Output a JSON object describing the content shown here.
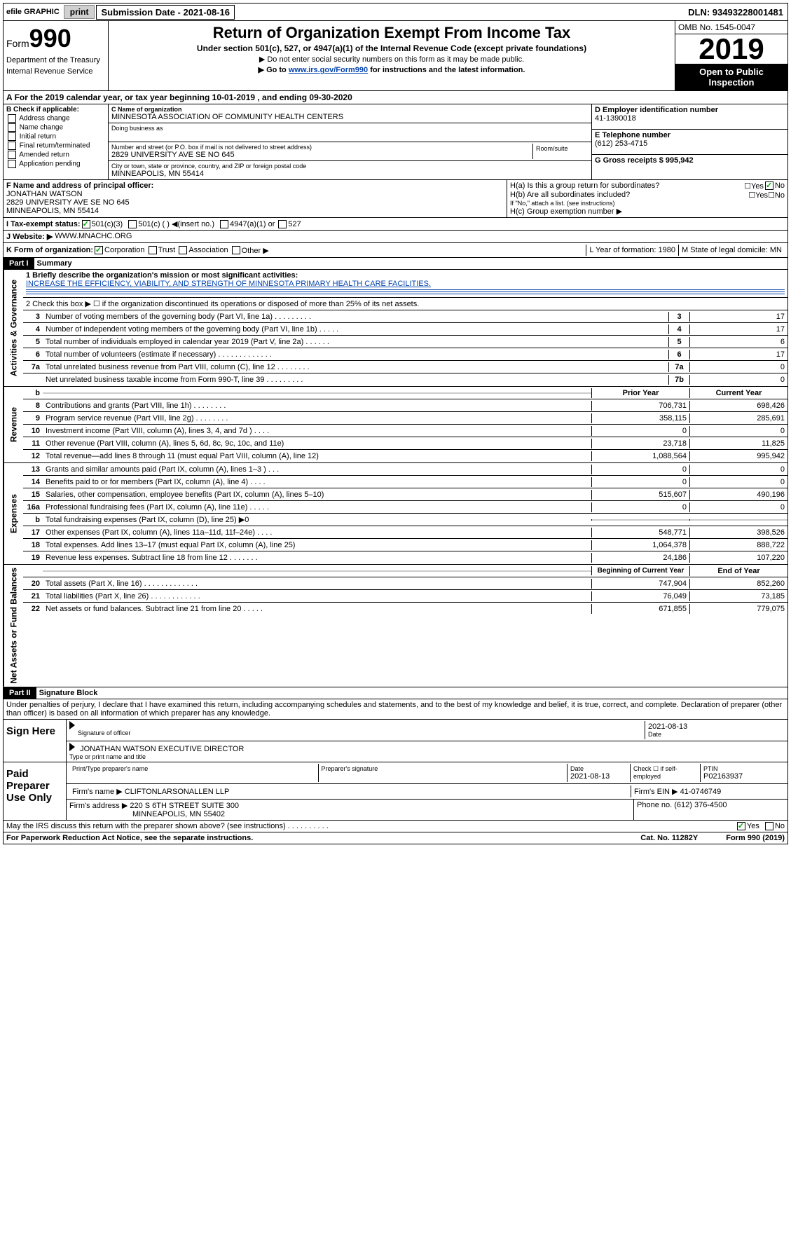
{
  "topbar": {
    "efile": "efile GRAPHIC",
    "print": "print",
    "submission_label": "Submission Date - 2021-08-16",
    "dln": "DLN: 93493228001481"
  },
  "header": {
    "form_label": "Form",
    "form_num": "990",
    "dept": "Department of the Treasury",
    "irs": "Internal Revenue Service",
    "title": "Return of Organization Exempt From Income Tax",
    "subtitle": "Under section 501(c), 527, or 4947(a)(1) of the Internal Revenue Code (except private foundations)",
    "instr1": "▶ Do not enter social security numbers on this form as it may be made public.",
    "instr2_pre": "▶ Go to ",
    "instr2_link": "www.irs.gov/Form990",
    "instr2_post": " for instructions and the latest information.",
    "omb": "OMB No. 1545-0047",
    "year": "2019",
    "open": "Open to Public Inspection"
  },
  "section_a": "For the 2019 calendar year, or tax year beginning 10-01-2019    , and ending 09-30-2020",
  "box_b": {
    "label": "B Check if applicable:",
    "items": [
      "Address change",
      "Name change",
      "Initial return",
      "Final return/terminated",
      "Amended return",
      "Application pending"
    ]
  },
  "box_c": {
    "name_label": "C Name of organization",
    "name": "MINNESOTA ASSOCIATION OF COMMUNITY HEALTH CENTERS",
    "dba_label": "Doing business as",
    "addr_label": "Number and street (or P.O. box if mail is not delivered to street address)",
    "room_label": "Room/suite",
    "addr": "2829 UNIVERSITY AVE SE NO 645",
    "city_label": "City or town, state or province, country, and ZIP or foreign postal code",
    "city": "MINNEAPOLIS, MN  55414"
  },
  "box_d": {
    "label": "D Employer identification number",
    "value": "41-1390018"
  },
  "box_e": {
    "label": "E Telephone number",
    "value": "(612) 253-4715"
  },
  "box_g": {
    "label": "G Gross receipts $ 995,942"
  },
  "box_f": {
    "label": "F  Name and address of principal officer:",
    "name": "JONATHAN WATSON",
    "addr1": "2829 UNIVERSITY AVE SE NO 645",
    "addr2": "MINNEAPOLIS, MN  55414"
  },
  "box_h": {
    "ha": "H(a)  Is this a group return for subordinates?",
    "hb": "H(b)  Are all subordinates included?",
    "hb_note": "If \"No,\" attach a list. (see instructions)",
    "hc": "H(c)  Group exemption number ▶"
  },
  "row_i": {
    "label": "I     Tax-exempt status:",
    "opt1": "501(c)(3)",
    "opt2": "501(c) (   ) ◀(insert no.)",
    "opt3": "4947(a)(1) or",
    "opt4": "527"
  },
  "row_j": {
    "label": "J    Website: ▶",
    "value": "WWW.MNACHC.ORG"
  },
  "row_k": {
    "label": "K Form of organization:",
    "opts": [
      "Corporation",
      "Trust",
      "Association",
      "Other ▶"
    ],
    "l_label": "L Year of formation: 1980",
    "m_label": "M State of legal domicile: MN"
  },
  "part1": {
    "header": "Part I",
    "title": "Summary"
  },
  "summary": {
    "line1_label": "1  Briefly describe the organization's mission or most significant activities:",
    "line1_text": "INCREASE THE EFFICIENCY, VIABILITY, AND STRENGTH OF MINNESOTA PRIMARY HEALTH CARE FACILITIES.",
    "line2": "2   Check this box ▶ ☐  if the organization discontinued its operations or disposed of more than 25% of its net assets.",
    "lines_gov": [
      {
        "n": "3",
        "t": "Number of voting members of the governing body (Part VI, line 1a)  .  .  .  .  .  .  .  .  .",
        "b": "3",
        "v": "17"
      },
      {
        "n": "4",
        "t": "Number of independent voting members of the governing body (Part VI, line 1b)  .  .  .  .  .",
        "b": "4",
        "v": "17"
      },
      {
        "n": "5",
        "t": "Total number of individuals employed in calendar year 2019 (Part V, line 2a)  .  .  .  .  .  .",
        "b": "5",
        "v": "6"
      },
      {
        "n": "6",
        "t": "Total number of volunteers (estimate if necessary)  .  .  .  .  .  .  .  .  .  .  .  .  .",
        "b": "6",
        "v": "17"
      },
      {
        "n": "7a",
        "t": "Total unrelated business revenue from Part VIII, column (C), line 12  .  .  .  .  .  .  .  .",
        "b": "7a",
        "v": "0"
      },
      {
        "n": "",
        "t": "Net unrelated business taxable income from Form 990-T, line 39  .  .  .  .  .  .  .  .  .",
        "b": "7b",
        "v": "0"
      }
    ],
    "col_prior": "Prior Year",
    "col_current": "Current Year",
    "lines_rev": [
      {
        "n": "8",
        "t": "Contributions and grants (Part VIII, line 1h)  .  .  .  .  .  .  .  .",
        "p": "706,731",
        "c": "698,426"
      },
      {
        "n": "9",
        "t": "Program service revenue (Part VIII, line 2g)  .  .  .  .  .  .  .  .",
        "p": "358,115",
        "c": "285,691"
      },
      {
        "n": "10",
        "t": "Investment income (Part VIII, column (A), lines 3, 4, and 7d )  .  .  .  .",
        "p": "0",
        "c": "0"
      },
      {
        "n": "11",
        "t": "Other revenue (Part VIII, column (A), lines 5, 6d, 8c, 9c, 10c, and 11e)",
        "p": "23,718",
        "c": "11,825"
      },
      {
        "n": "12",
        "t": "Total revenue—add lines 8 through 11 (must equal Part VIII, column (A), line 12)",
        "p": "1,088,564",
        "c": "995,942"
      }
    ],
    "lines_exp": [
      {
        "n": "13",
        "t": "Grants and similar amounts paid (Part IX, column (A), lines 1–3 )  .  .  .",
        "p": "0",
        "c": "0"
      },
      {
        "n": "14",
        "t": "Benefits paid to or for members (Part IX, column (A), line 4)  .  .  .  .",
        "p": "0",
        "c": "0"
      },
      {
        "n": "15",
        "t": "Salaries, other compensation, employee benefits (Part IX, column (A), lines 5–10)",
        "p": "515,607",
        "c": "490,196"
      },
      {
        "n": "16a",
        "t": "Professional fundraising fees (Part IX, column (A), line 11e)  .  .  .  .  .",
        "p": "0",
        "c": "0"
      },
      {
        "n": "b",
        "t": "Total fundraising expenses (Part IX, column (D), line 25) ▶0",
        "p": "",
        "c": "",
        "gray": true
      },
      {
        "n": "17",
        "t": "Other expenses (Part IX, column (A), lines 11a–11d, 11f–24e)  .  .  .  .",
        "p": "548,771",
        "c": "398,526"
      },
      {
        "n": "18",
        "t": "Total expenses. Add lines 13–17 (must equal Part IX, column (A), line 25)",
        "p": "1,064,378",
        "c": "888,722"
      },
      {
        "n": "19",
        "t": "Revenue less expenses. Subtract line 18 from line 12  .  .  .  .  .  .  .",
        "p": "24,186",
        "c": "107,220"
      }
    ],
    "col_begin": "Beginning of Current Year",
    "col_end": "End of Year",
    "lines_net": [
      {
        "n": "20",
        "t": "Total assets (Part X, line 16)  .  .  .  .  .  .  .  .  .  .  .  .  .",
        "p": "747,904",
        "c": "852,260"
      },
      {
        "n": "21",
        "t": "Total liabilities (Part X, line 26)  .  .  .  .  .  .  .  .  .  .  .  .",
        "p": "76,049",
        "c": "73,185"
      },
      {
        "n": "22",
        "t": "Net assets or fund balances. Subtract line 21 from line 20  .  .  .  .  .",
        "p": "671,855",
        "c": "779,075"
      }
    ],
    "vert_gov": "Activities & Governance",
    "vert_rev": "Revenue",
    "vert_exp": "Expenses",
    "vert_net": "Net Assets or Fund Balances"
  },
  "part2": {
    "header": "Part II",
    "title": "Signature Block"
  },
  "sig": {
    "perjury": "Under penalties of perjury, I declare that I have examined this return, including accompanying schedules and statements, and to the best of my knowledge and belief, it is true, correct, and complete. Declaration of preparer (other than officer) is based on all information of which preparer has any knowledge.",
    "sign_here": "Sign Here",
    "sig_officer": "Signature of officer",
    "date": "Date",
    "date_val": "2021-08-13",
    "name_title": "JONATHAN WATSON  EXECUTIVE DIRECTOR",
    "type_label": "Type or print name and title",
    "paid": "Paid Preparer Use Only",
    "prep_name_label": "Print/Type preparer's name",
    "prep_sig_label": "Preparer's signature",
    "prep_date": "2021-08-13",
    "check_self": "Check ☐ if self-employed",
    "ptin_label": "PTIN",
    "ptin": "P02163937",
    "firm_name_label": "Firm's name      ▶",
    "firm_name": "CLIFTONLARSONALLEN LLP",
    "firm_ein_label": "Firm's EIN ▶",
    "firm_ein": "41-0746749",
    "firm_addr_label": "Firm's address ▶",
    "firm_addr1": "220 S 6TH STREET SUITE 300",
    "firm_addr2": "MINNEAPOLIS, MN  55402",
    "phone_label": "Phone no.",
    "phone": "(612) 376-4500"
  },
  "footer": {
    "discuss": "May the IRS discuss this return with the preparer shown above? (see instructions)  .  .  .  .  .  .  .  .  .  .",
    "paperwork": "For Paperwork Reduction Act Notice, see the separate instructions.",
    "cat": "Cat. No. 11282Y",
    "form": "Form 990 (2019)"
  }
}
